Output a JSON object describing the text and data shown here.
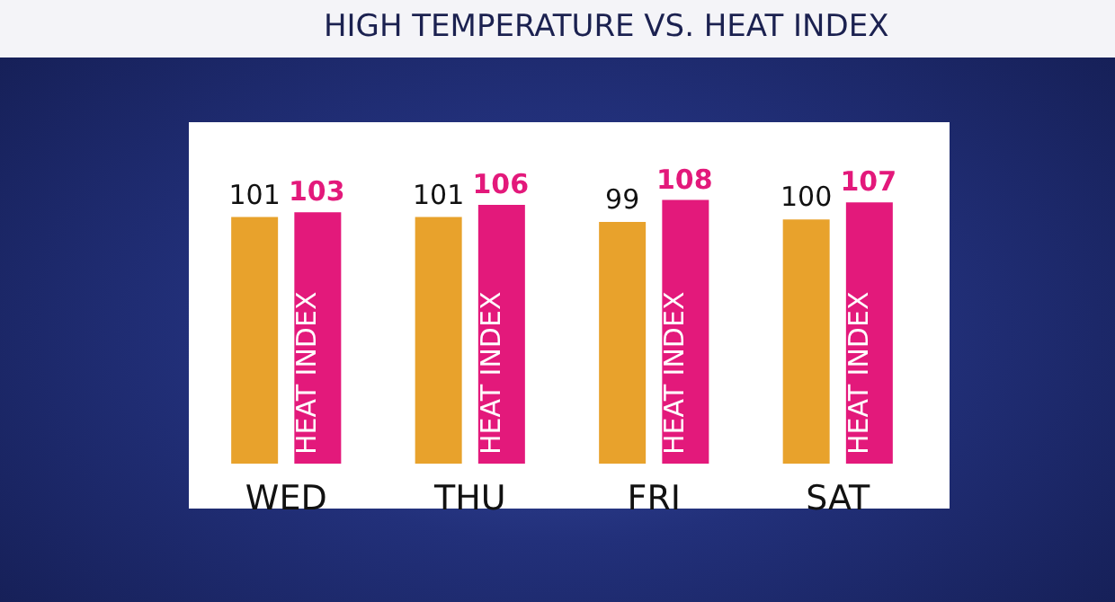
{
  "chart_data": {
    "type": "bar",
    "title": "HIGH TEMPERATURE VS. HEAT INDEX",
    "categories": [
      "WED",
      "THU",
      "FRI",
      "SAT"
    ],
    "series": [
      {
        "color": "#e8a22c",
        "values": [
          101,
          101,
          99,
          100
        ]
      },
      {
        "name": "HEAT INDEX",
        "color": "#e3197b",
        "values": [
          103,
          106,
          108,
          107
        ]
      }
    ],
    "data_labels": true,
    "legend": false
  }
}
